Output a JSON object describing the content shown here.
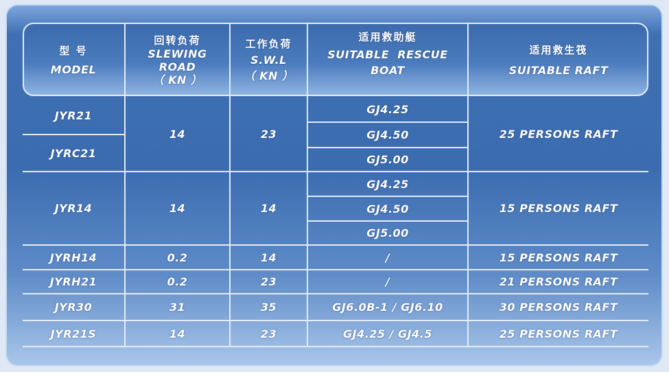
{
  "header": {
    "model": {
      "zh": "型 号",
      "en": "MODEL"
    },
    "slewing": {
      "zh": "回转负荷",
      "en1": "SLEWING",
      "en2": "ROAD",
      "unit": "（ KN ）"
    },
    "swl": {
      "zh": "工作负荷",
      "en": "S.W.L",
      "unit": "（ KN ）"
    },
    "boat": {
      "zh": "适用救助艇",
      "en1": "SUITABLE  RESCUE",
      "en2": "BOAT"
    },
    "raft": {
      "zh": "适用救生筏",
      "en": "SUITABLE RAFT"
    }
  },
  "groups": [
    {
      "models": [
        "JYR21",
        "JYRC21"
      ],
      "slewing": "14",
      "swl": "23",
      "boats": [
        "GJ4.25",
        "GJ4.50",
        "GJ5.00"
      ],
      "raft": "25 PERSONS RAFT"
    },
    {
      "models": [
        "JYR14"
      ],
      "slewing": "14",
      "swl": "14",
      "boats": [
        "GJ4.25",
        "GJ4.50",
        "GJ5.00"
      ],
      "raft": "15 PERSONS RAFT"
    }
  ],
  "rows": [
    {
      "model": "JYRH14",
      "slewing": "0.2",
      "swl": "14",
      "boat": "/",
      "raft": "15 PERSONS RAFT"
    },
    {
      "model": "JYRH21",
      "slewing": "0.2",
      "swl": "23",
      "boat": "/",
      "raft": "21 PERSONS RAFT"
    },
    {
      "model": "JYR30",
      "slewing": "31",
      "swl": "35",
      "boat": "GJ6.0B-1 / GJ6.10",
      "raft": "30 PERSONS RAFT"
    },
    {
      "model": "JYR21S",
      "slewing": "14",
      "swl": "23",
      "boat": "GJ4.25 / GJ4.5",
      "raft": "25 PERSONS RAFT"
    }
  ],
  "colors": {
    "panel": "#3b6cb0",
    "lines": "#e3ecf8",
    "text": "#ffffff"
  }
}
